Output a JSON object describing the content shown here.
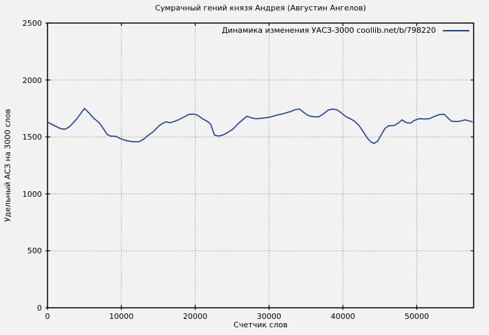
{
  "page": {
    "background_color": "#f2f2f2",
    "text_color": "#000000"
  },
  "chart_data": {
    "type": "line",
    "title": "Сумрачный гений князя Андрея (Августин Ангелов)",
    "xlabel": "Счетчик слов",
    "ylabel": "Удельный АСЗ на 3000 слов",
    "xlim": [
      0,
      57700
    ],
    "ylim": [
      0,
      2500
    ],
    "x_ticks": [
      0,
      10000,
      20000,
      30000,
      40000,
      50000
    ],
    "y_ticks": [
      0,
      500,
      1000,
      1500,
      2000,
      2500
    ],
    "grid": true,
    "grid_style": "dashed-gray",
    "legend_position": "top-right-inside",
    "series": [
      {
        "name": "Динамика изменения УАСЗ-3000 coollib.net/b/798220",
        "color": "#1a3e9c",
        "points": [
          [
            0,
            1630
          ],
          [
            1000,
            1597
          ],
          [
            1800,
            1572
          ],
          [
            2400,
            1568
          ],
          [
            3000,
            1590
          ],
          [
            4000,
            1662
          ],
          [
            5000,
            1750
          ],
          [
            5600,
            1712
          ],
          [
            6300,
            1662
          ],
          [
            7000,
            1625
          ],
          [
            7600,
            1570
          ],
          [
            8100,
            1520
          ],
          [
            8600,
            1507
          ],
          [
            9300,
            1505
          ],
          [
            9800,
            1487
          ],
          [
            10300,
            1475
          ],
          [
            11000,
            1463
          ],
          [
            11700,
            1457
          ],
          [
            12400,
            1458
          ],
          [
            13000,
            1480
          ],
          [
            13600,
            1513
          ],
          [
            14300,
            1545
          ],
          [
            15000,
            1592
          ],
          [
            15600,
            1620
          ],
          [
            16100,
            1633
          ],
          [
            16600,
            1624
          ],
          [
            17100,
            1635
          ],
          [
            17800,
            1652
          ],
          [
            18400,
            1672
          ],
          [
            19100,
            1696
          ],
          [
            19700,
            1701
          ],
          [
            20300,
            1692
          ],
          [
            21000,
            1660
          ],
          [
            21800,
            1630
          ],
          [
            22100,
            1610
          ],
          [
            22600,
            1518
          ],
          [
            23100,
            1508
          ],
          [
            23600,
            1513
          ],
          [
            24300,
            1535
          ],
          [
            25100,
            1568
          ],
          [
            25800,
            1615
          ],
          [
            26500,
            1655
          ],
          [
            27000,
            1682
          ],
          [
            27600,
            1668
          ],
          [
            28200,
            1660
          ],
          [
            29000,
            1664
          ],
          [
            30000,
            1672
          ],
          [
            31000,
            1690
          ],
          [
            32000,
            1706
          ],
          [
            33000,
            1725
          ],
          [
            33600,
            1740
          ],
          [
            34100,
            1745
          ],
          [
            34700,
            1715
          ],
          [
            35300,
            1688
          ],
          [
            35900,
            1678
          ],
          [
            36700,
            1675
          ],
          [
            37300,
            1700
          ],
          [
            38000,
            1735
          ],
          [
            38600,
            1745
          ],
          [
            39200,
            1738
          ],
          [
            39800,
            1710
          ],
          [
            40400,
            1678
          ],
          [
            41000,
            1660
          ],
          [
            41600,
            1637
          ],
          [
            42200,
            1600
          ],
          [
            42800,
            1540
          ],
          [
            43300,
            1490
          ],
          [
            43800,
            1455
          ],
          [
            44200,
            1443
          ],
          [
            44700,
            1462
          ],
          [
            45200,
            1520
          ],
          [
            45700,
            1575
          ],
          [
            46200,
            1598
          ],
          [
            46900,
            1600
          ],
          [
            47500,
            1622
          ],
          [
            48000,
            1650
          ],
          [
            48500,
            1628
          ],
          [
            49100,
            1620
          ],
          [
            49700,
            1645
          ],
          [
            50300,
            1660
          ],
          [
            51000,
            1657
          ],
          [
            51700,
            1660
          ],
          [
            52300,
            1678
          ],
          [
            53000,
            1695
          ],
          [
            53700,
            1700
          ],
          [
            54200,
            1668
          ],
          [
            54700,
            1638
          ],
          [
            55400,
            1635
          ],
          [
            56000,
            1640
          ],
          [
            56500,
            1650
          ],
          [
            57000,
            1642
          ],
          [
            57500,
            1633
          ]
        ]
      }
    ]
  }
}
